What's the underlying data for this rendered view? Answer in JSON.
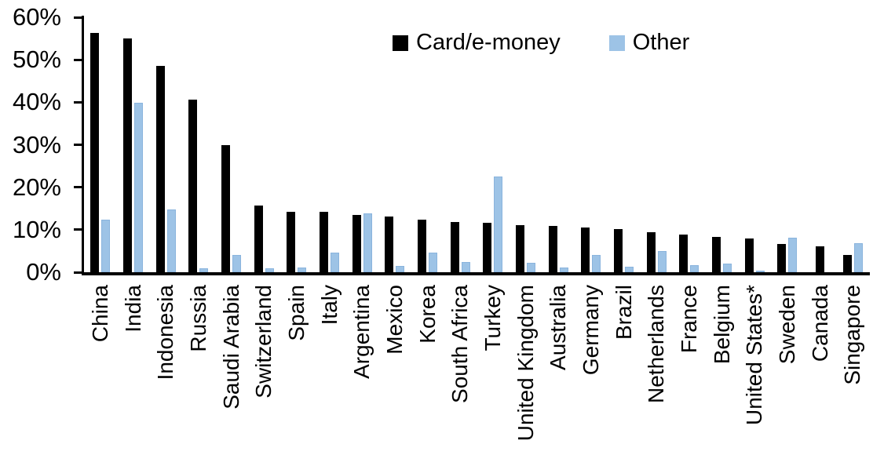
{
  "chart_data": {
    "type": "bar",
    "title": "",
    "xlabel": "",
    "ylabel": "",
    "ylim": [
      0,
      60
    ],
    "grid": false,
    "legend_position": "top-center",
    "yticks": [
      {
        "label": "0%",
        "value": 0
      },
      {
        "label": "10%",
        "value": 10
      },
      {
        "label": "20%",
        "value": 20
      },
      {
        "label": "30%",
        "value": 30
      },
      {
        "label": "40%",
        "value": 40
      },
      {
        "label": "50%",
        "value": 50
      },
      {
        "label": "60%",
        "value": 60
      }
    ],
    "categories": [
      "China",
      "India",
      "Indonesia",
      "Russia",
      "Saudi Arabia",
      "Switzerland",
      "Spain",
      "Italy",
      "Argentina",
      "Mexico",
      "Korea",
      "South Africa",
      "Turkey",
      "United Kingdom",
      "Australia",
      "Germany",
      "Brazil",
      "Netherlands",
      "France",
      "Belgium",
      "United States*",
      "Sweden",
      "Canada",
      "Singapore"
    ],
    "series": [
      {
        "name": "Card/e-money",
        "color": "#000000",
        "values": [
          56.4,
          55.1,
          48.5,
          40.6,
          29.9,
          15.7,
          14.3,
          14.2,
          13.5,
          13.1,
          12.3,
          11.9,
          11.6,
          11.1,
          10.9,
          10.6,
          10.1,
          9.4,
          8.8,
          8.3,
          8.0,
          6.7,
          6.1,
          4.1
        ]
      },
      {
        "name": "Other",
        "color": "#9DC3E6",
        "values": [
          12.4,
          39.9,
          14.7,
          1.0,
          4.0,
          0.9,
          1.2,
          4.7,
          13.9,
          1.4,
          4.7,
          2.4,
          22.5,
          2.3,
          1.1,
          4.0,
          1.3,
          4.9,
          1.6,
          2.1,
          0.4,
          8.2,
          0,
          6.8
        ]
      }
    ]
  }
}
